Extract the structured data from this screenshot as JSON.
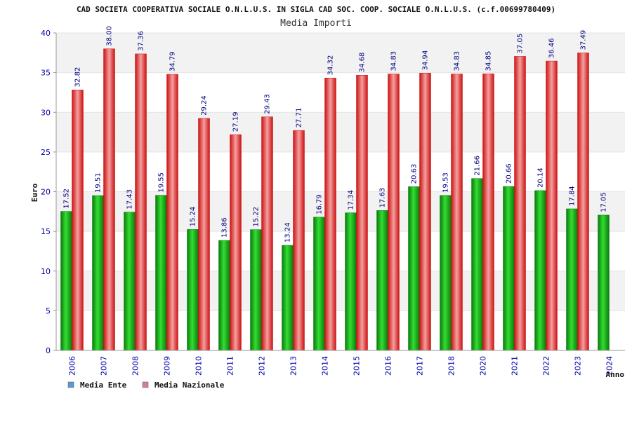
{
  "chart_data": {
    "type": "bar",
    "title": "CAD SOCIETA COOPERATIVA SOCIALE O.N.L.U.S. IN SIGLA CAD SOC. COOP. SOCIALE O.N.L.U.S. (c.f.00699780409)",
    "subtitle": "Media Importi",
    "xlabel": "Anno",
    "ylabel": "Euro",
    "ylim": [
      0,
      40
    ],
    "yticks": [
      "0",
      "5",
      "10",
      "15",
      "20",
      "25",
      "30",
      "35",
      "40"
    ],
    "categories": [
      "2006",
      "2007",
      "2008",
      "2009",
      "2010",
      "2011",
      "2012",
      "2013",
      "2014",
      "2015",
      "2016",
      "2017",
      "2018",
      "2020",
      "2021",
      "2022",
      "2023",
      "2024"
    ],
    "series": [
      {
        "name": "Media Ente",
        "legend_color": "#5b9bd5",
        "bar_color": "#11aa11",
        "values": [
          17.52,
          19.51,
          17.43,
          19.55,
          15.24,
          13.86,
          15.22,
          13.24,
          16.79,
          17.34,
          17.63,
          20.63,
          19.53,
          21.66,
          20.66,
          20.14,
          17.84,
          17.05
        ],
        "labels": [
          "17.52",
          "19.51",
          "17.43",
          "19.55",
          "15.24",
          "13.86",
          "15.22",
          "13.24",
          "16.79",
          "17.34",
          "17.63",
          "20.63",
          "19.53",
          "21.66",
          "20.66",
          "20.14",
          "17.84",
          "17.05"
        ]
      },
      {
        "name": "Media Nazionale",
        "legend_color": "#d57ba3",
        "bar_color": "#ee2222",
        "values": [
          32.82,
          38.0,
          37.36,
          34.79,
          29.24,
          27.19,
          29.43,
          27.71,
          34.32,
          34.68,
          34.83,
          34.94,
          34.83,
          34.85,
          37.05,
          36.46,
          37.49,
          null
        ],
        "labels": [
          "32.82",
          "38.00",
          "37.36",
          "34.79",
          "29.24",
          "27.19",
          "29.43",
          "27.71",
          "34.32",
          "34.68",
          "34.83",
          "34.94",
          "34.83",
          "34.85",
          "37.05",
          "36.46",
          "37.49",
          null
        ]
      }
    ],
    "grid": true,
    "grid_style": "alternating horizontal bands",
    "band_color": "#f2f2f2",
    "legend_position": "bottom-left"
  }
}
